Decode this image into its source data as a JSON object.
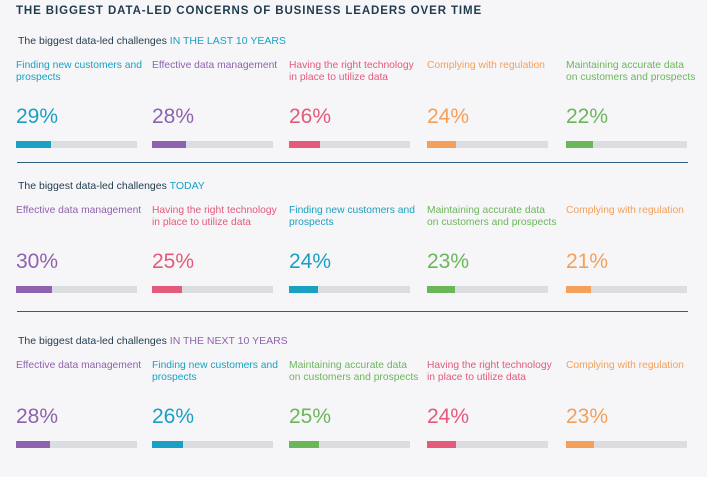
{
  "title": "THE BIGGEST DATA-LED CONCERNS OF BUSINESS LEADERS OVER TIME",
  "colors": {
    "cyan": "#1aa0c2",
    "purple": "#8f62ae",
    "pink": "#e35a7a",
    "orange": "#f3a05a",
    "green": "#6cb65a",
    "track": "#dcdde1",
    "heading": "#1f3b4d"
  },
  "chart_data": [
    {
      "type": "bar",
      "heading_prefix": "The biggest data-led challenges",
      "heading_emphasis": "IN THE LAST 10 YEARS",
      "heading_color": "cyan",
      "items": [
        {
          "label": "Finding new customers and prospects",
          "value_text": "29%",
          "value": 29,
          "color": "cyan"
        },
        {
          "label": "Effective data management",
          "value_text": "28%",
          "value": 28,
          "color": "purple"
        },
        {
          "label": "Having the right technology in place to utilize data",
          "value_text": "26%",
          "value": 26,
          "color": "pink"
        },
        {
          "label": "Complying with regulation",
          "value_text": "24%",
          "value": 24,
          "color": "orange"
        },
        {
          "label": "Maintaining accurate data on customers and prospects",
          "value_text": "22%",
          "value": 22,
          "color": "green"
        }
      ]
    },
    {
      "type": "bar",
      "heading_prefix": "The biggest data-led challenges",
      "heading_emphasis": "TODAY",
      "heading_color": "cyan",
      "items": [
        {
          "label": "Effective data management",
          "value_text": "30%",
          "value": 30,
          "color": "purple"
        },
        {
          "label": "Having the right technology in place to utilize data",
          "value_text": "25%",
          "value": 25,
          "color": "pink"
        },
        {
          "label": "Finding new customers and prospects",
          "value_text": "24%",
          "value": 24,
          "color": "cyan"
        },
        {
          "label": "Maintaining accurate data on customers and prospects",
          "value_text": "23%",
          "value": 23,
          "color": "green"
        },
        {
          "label": "Complying with regulation",
          "value_text": "21%",
          "value": 21,
          "color": "orange"
        }
      ]
    },
    {
      "type": "bar",
      "heading_prefix": "The biggest data-led challenges",
      "heading_emphasis": "IN THE NEXT 10 YEARS",
      "heading_color": "purple",
      "items": [
        {
          "label": "Effective data management",
          "value_text": "28%",
          "value": 28,
          "color": "purple"
        },
        {
          "label": "Finding new customers and prospects",
          "value_text": "26%",
          "value": 26,
          "color": "cyan"
        },
        {
          "label": "Maintaining accurate data on customers and prospects",
          "value_text": "25%",
          "value": 25,
          "color": "green"
        },
        {
          "label": "Having the right technology in place to utilize data",
          "value_text": "24%",
          "value": 24,
          "color": "pink"
        },
        {
          "label": "Complying with regulation",
          "value_text": "23%",
          "value": 23,
          "color": "orange"
        }
      ]
    }
  ]
}
